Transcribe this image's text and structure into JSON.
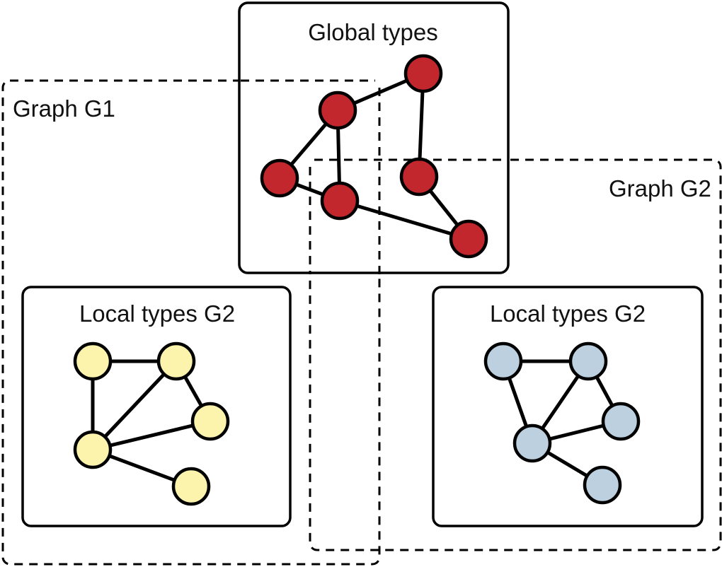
{
  "labels": {
    "graph_g1": "Graph G1",
    "graph_g2": "Graph G2",
    "global_types": "Global types",
    "local_types_left": "Local types G2",
    "local_types_right": "Local types G2"
  },
  "colors": {
    "global_node": "#c1272d",
    "local_left_node": "#fcf4ad",
    "local_right_node": "#bcd0e0",
    "stroke": "#000000"
  }
}
